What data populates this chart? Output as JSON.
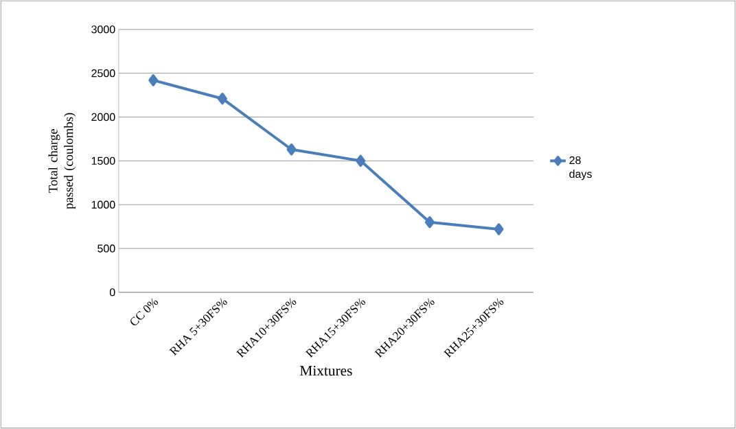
{
  "chart_data": {
    "type": "line",
    "xlabel": "Mixtures",
    "ylabel": "Total  charge passed (coulombs)",
    "categories": [
      "CC 0%",
      "RHA 5+30FS%",
      "RHA10+30FS%",
      "RHA15+30FS%",
      "RHA20+30FS%",
      "RHA25+30FS%"
    ],
    "series": [
      {
        "name": "28 days",
        "color": "#4a7ebb",
        "values": [
          2420,
          2210,
          1630,
          1500,
          800,
          720
        ]
      }
    ],
    "ylim": [
      0,
      3000
    ],
    "yticks": [
      0,
      500,
      1000,
      1500,
      2000,
      2500,
      3000
    ],
    "grid": "y",
    "legend": "right",
    "marker": "diamond",
    "line_style": "solid"
  }
}
